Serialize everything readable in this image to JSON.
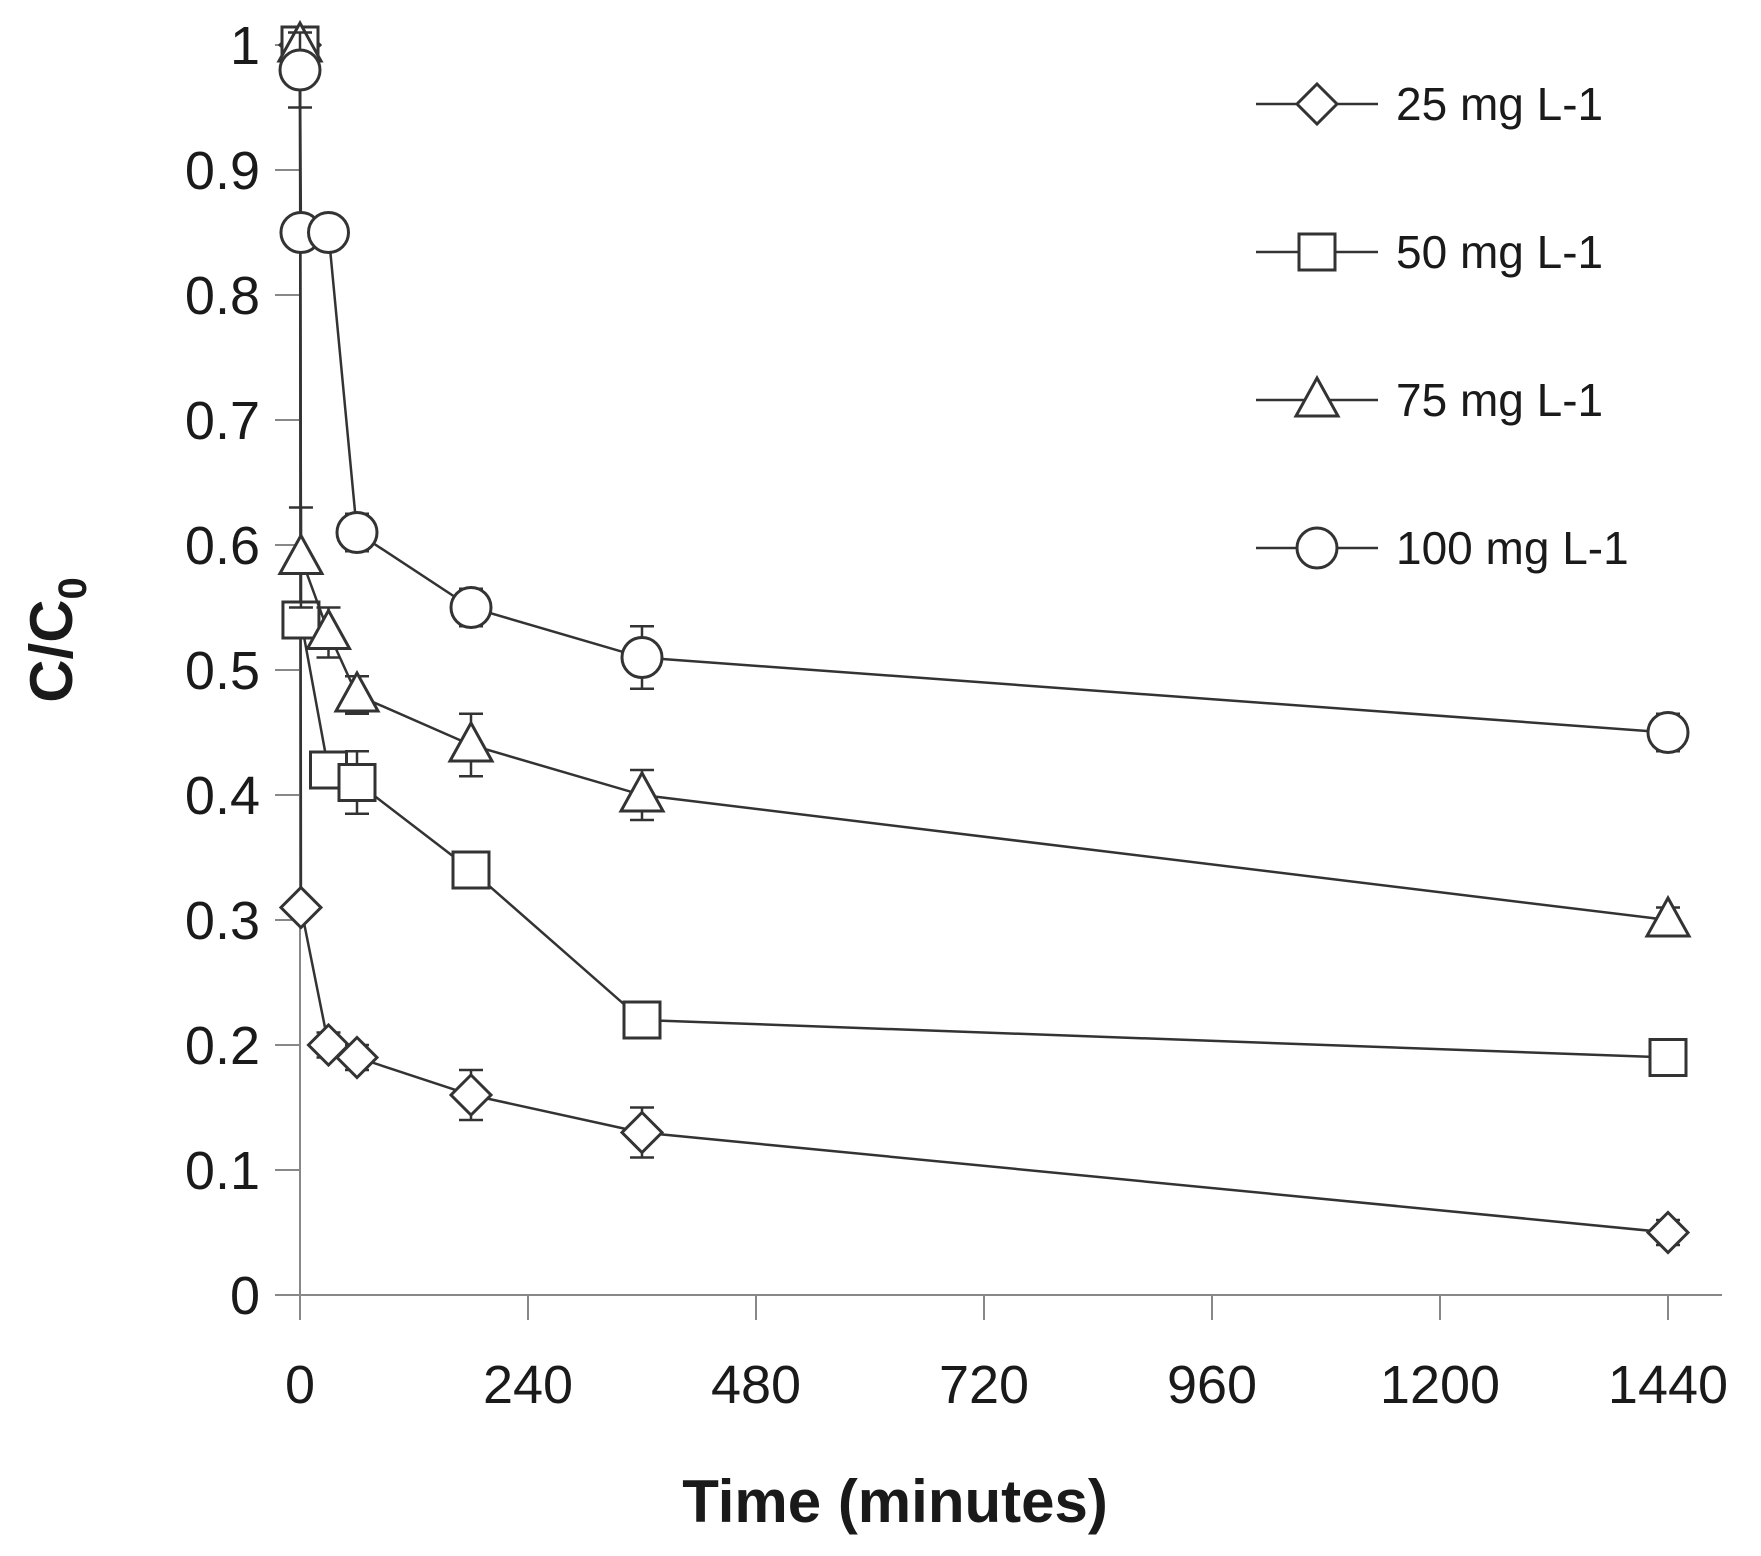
{
  "chart_data": {
    "type": "line",
    "title": "",
    "xlabel": "Time (minutes)",
    "ylabel": "C/C0",
    "ylabel_main": "C/C",
    "ylabel_sub": "0",
    "xlim": [
      0,
      1440
    ],
    "ylim": [
      0,
      1
    ],
    "xticks": [
      0,
      240,
      480,
      720,
      960,
      1200,
      1440
    ],
    "xtick_labels": [
      "0",
      "240",
      "480",
      "720",
      "960",
      "1200",
      "1440"
    ],
    "yticks": [
      0,
      0.1,
      0.2,
      0.3,
      0.4,
      0.5,
      0.6,
      0.7,
      0.8,
      0.9,
      1
    ],
    "ytick_labels": [
      "0",
      "0.1",
      "0.2",
      "0.3",
      "0.4",
      "0.5",
      "0.6",
      "0.7",
      "0.8",
      "0.9",
      "1"
    ],
    "grid": false,
    "legend_position": "top-right",
    "x": [
      0,
      1,
      30,
      60,
      180,
      360,
      1440
    ],
    "series": [
      {
        "name": "25 mg L-1",
        "marker": "diamond",
        "values": [
          1.0,
          0.31,
          0.2,
          0.19,
          0.16,
          0.13,
          0.05
        ],
        "errors": [
          0,
          0,
          0.01,
          0.01,
          0.02,
          0.02,
          0.01
        ]
      },
      {
        "name": "50 mg L-1",
        "marker": "square",
        "values": [
          1.0,
          0.54,
          0.42,
          0.41,
          0.34,
          0.22,
          0.19
        ],
        "errors": [
          0,
          0,
          0.01,
          0.025,
          0.01,
          0.01,
          0.01
        ]
      },
      {
        "name": "75 mg L-1",
        "marker": "triangle",
        "values": [
          1.0,
          0.59,
          0.53,
          0.48,
          0.44,
          0.4,
          0.3
        ],
        "errors": [
          0,
          0.04,
          0.02,
          0.015,
          0.025,
          0.02,
          0.01
        ]
      },
      {
        "name": "100 mg L-1",
        "marker": "circle",
        "values": [
          0.98,
          0.85,
          0.85,
          0.61,
          0.55,
          0.51,
          0.45
        ],
        "errors": [
          0.03,
          0,
          0,
          0.015,
          0.015,
          0.025,
          0.015
        ]
      }
    ]
  },
  "colors": {
    "line": "#333333",
    "axis": "#888888",
    "marker_fill": "#ffffff",
    "text": "#1a1a1a"
  }
}
